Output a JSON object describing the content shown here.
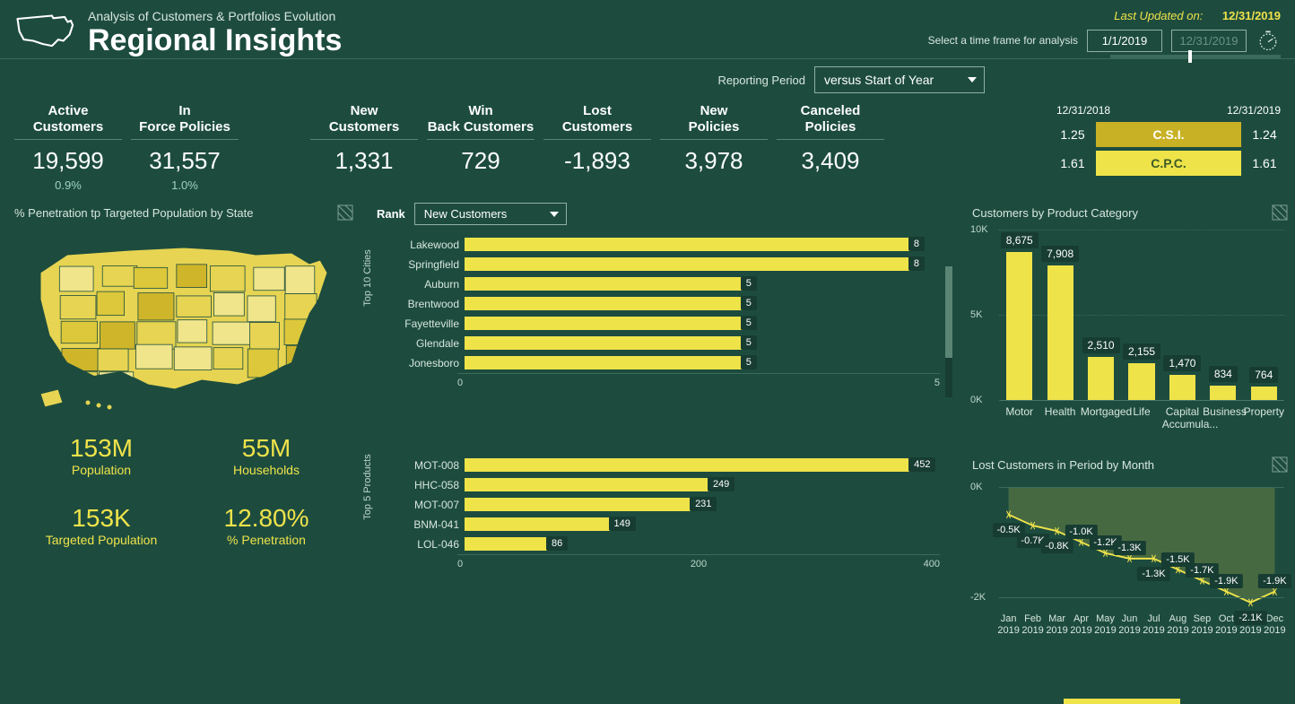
{
  "header": {
    "subtitle": "Analysis of Customers & Portfolios Evolution",
    "title": "Regional Insights",
    "updated_label": "Last Updated on:",
    "updated_date": "12/31/2019"
  },
  "time_selector": {
    "label": "Select a time frame for analysis",
    "start": "1/1/2019",
    "end": "12/31/2019",
    "slider_pos_pct": 46
  },
  "reporting": {
    "label": "Reporting Period",
    "value": "versus Start of Year"
  },
  "kpis": [
    {
      "label": "Active Customers",
      "value": "19,599",
      "delta": "0.9%"
    },
    {
      "label": "In Force Policies",
      "value": "31,557",
      "delta": "1.0%"
    },
    {
      "label": "New Customers",
      "value": "1,331"
    },
    {
      "label": "Win Back Customers",
      "value": "729"
    },
    {
      "label": "Lost Customers",
      "value": "-1,893"
    },
    {
      "label": "New Policies",
      "value": "3,978"
    },
    {
      "label": "Canceled Policies",
      "value": "3,409"
    }
  ],
  "csi": {
    "start_date": "12/31/2018",
    "end_date": "12/31/2019",
    "rows": [
      {
        "left": "1.25",
        "label": "C.S.I.",
        "right": "1.24",
        "class": "csi"
      },
      {
        "left": "1.61",
        "label": "C.P.C.",
        "right": "1.61",
        "class": "cpc"
      }
    ]
  },
  "map_panel": {
    "title": "% Penetration tp Targeted Population by State",
    "stats": [
      {
        "value": "153M",
        "label": "Population"
      },
      {
        "value": "55M",
        "label": "Households"
      },
      {
        "value": "153K",
        "label": "Targeted Population"
      },
      {
        "value": "12.80%",
        "label": "% Penetration"
      }
    ],
    "fill_color": "#e6d452",
    "stroke_color": "#1d4c3f"
  },
  "product_chart": {
    "title": "Customers by Product Category",
    "type": "bar",
    "y_max": 10000,
    "y_ticks": [
      {
        "v": 0,
        "label": "0K"
      },
      {
        "v": 5000,
        "label": "5K"
      },
      {
        "v": 10000,
        "label": "10K"
      }
    ],
    "bar_color": "#efe34a",
    "label_bg": "#173c32",
    "categories": [
      {
        "label": "Motor",
        "value": 8675,
        "display": "8,675"
      },
      {
        "label": "Health",
        "value": 7908,
        "display": "7,908"
      },
      {
        "label": "Mortgaged",
        "value": 2510,
        "display": "2,510"
      },
      {
        "label": "Life",
        "value": 2155,
        "display": "2,155"
      },
      {
        "label": "Capital Accumula...",
        "value": 1470,
        "display": "1,470"
      },
      {
        "label": "Business",
        "value": 834,
        "display": "834"
      },
      {
        "label": "Property",
        "value": 764,
        "display": "764"
      }
    ]
  },
  "lost_chart": {
    "title": "Lost Customers in Period by Month",
    "type": "line",
    "y_min": -2200,
    "y_max": 100,
    "y_ticks": [
      {
        "v": 0,
        "label": "0K"
      },
      {
        "v": -2000,
        "label": "-2K"
      }
    ],
    "line_color": "#efe34a",
    "area_color": "rgba(239,227,74,0.20)",
    "marker": "x",
    "points": [
      {
        "x_label": "Jan 2019",
        "value": -500,
        "display": "-0.5K",
        "label_offset": "below"
      },
      {
        "x_label": "Feb 2019",
        "value": -700,
        "display": "-0.7K",
        "label_offset": "below"
      },
      {
        "x_label": "Mar 2019",
        "value": -800,
        "display": "-0.8K",
        "label_offset": "below"
      },
      {
        "x_label": "Apr 2019",
        "value": -1000,
        "display": "-1.0K",
        "label_offset": "above"
      },
      {
        "x_label": "May 2019",
        "value": -1200,
        "display": "-1.2K",
        "label_offset": "above"
      },
      {
        "x_label": "Jun 2019",
        "value": -1300,
        "display": "-1.3K",
        "label_offset": "above"
      },
      {
        "x_label": "Jul 2019",
        "value": -1300,
        "display": "-1.3K",
        "label_offset": "below"
      },
      {
        "x_label": "Aug 2019",
        "value": -1500,
        "display": "-1.5K",
        "label_offset": "above"
      },
      {
        "x_label": "Sep 2019",
        "value": -1700,
        "display": "-1.7K",
        "label_offset": "above"
      },
      {
        "x_label": "Oct 2019",
        "value": -1900,
        "display": "-1.9K",
        "label_offset": "above"
      },
      {
        "x_label": "Nov 2019",
        "value": -2100,
        "display": "-2.1K",
        "label_offset": "below"
      },
      {
        "x_label": "Dec 2019",
        "value": -1900,
        "display": "-1.9K",
        "label_offset": "above"
      }
    ]
  },
  "rank_panel": {
    "label": "Rank",
    "selected": "New Customers",
    "cities": {
      "axis_title": "Top 10 Cities",
      "max": 8.5,
      "x_ticks": [
        "0",
        "5"
      ],
      "bar_color": "#efe34a",
      "rows": [
        {
          "label": "Lakewood",
          "value": 8
        },
        {
          "label": "Springfield",
          "value": 8
        },
        {
          "label": "Auburn",
          "value": 5
        },
        {
          "label": "Brentwood",
          "value": 5
        },
        {
          "label": "Fayetteville",
          "value": 5
        },
        {
          "label": "Glendale",
          "value": 5
        },
        {
          "label": "Jonesboro",
          "value": 5
        }
      ],
      "scroll_thumb": {
        "top_pct": 0,
        "height_pct": 70
      }
    },
    "products": {
      "axis_title": "Top 5 Products",
      "max": 480,
      "x_ticks": [
        "0",
        "200",
        "400"
      ],
      "bar_color": "#efe34a",
      "rows": [
        {
          "label": "MOT-008",
          "value": 452
        },
        {
          "label": "HHC-058",
          "value": 249
        },
        {
          "label": "MOT-007",
          "value": 231
        },
        {
          "label": "BNM-041",
          "value": 149
        },
        {
          "label": "LOL-046",
          "value": 86
        }
      ]
    }
  },
  "colors": {
    "bg": "#1d4c3f",
    "accent": "#efe34a",
    "grid": "#3a6a5a",
    "tooltip_bg": "#173c32"
  }
}
